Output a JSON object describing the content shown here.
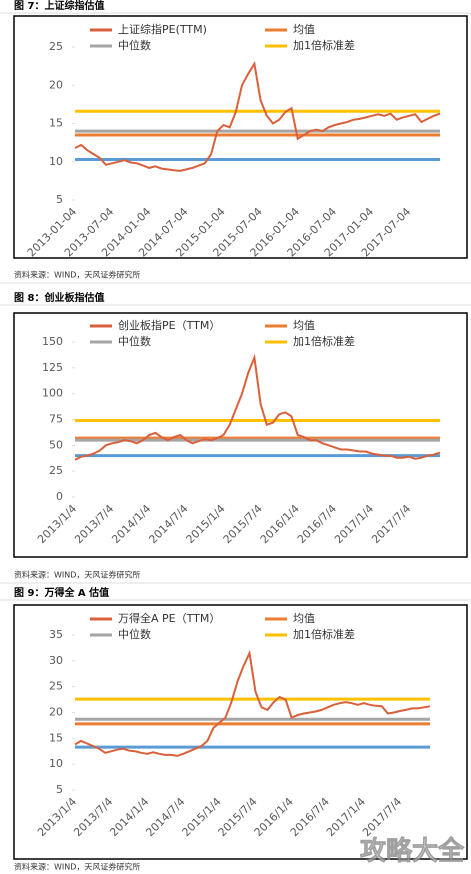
{
  "chart_data": [
    {
      "type": "line",
      "caption": "图 7：上证综指估值",
      "source": "资料来源：WIND，天风证券研究所",
      "categories": [
        "2013-01-04",
        null,
        null,
        null,
        null,
        null,
        "2013-07-04",
        null,
        null,
        null,
        null,
        null,
        "2014-01-04",
        null,
        null,
        null,
        null,
        null,
        "2014-07-04",
        null,
        null,
        null,
        null,
        null,
        "2015-01-04",
        null,
        null,
        null,
        null,
        null,
        "2015-07-04",
        null,
        null,
        null,
        null,
        null,
        "2016-01-04",
        null,
        null,
        null,
        null,
        null,
        "2016-07-04",
        null,
        null,
        null,
        null,
        null,
        "2017-01-04",
        null,
        null,
        null,
        null,
        null,
        "2017-07-04",
        null,
        null,
        null,
        null,
        null
      ],
      "series": [
        {
          "name": "上证综指PE(TTM)",
          "color": "#d9603b",
          "values": [
            11.8,
            12.2,
            11.5,
            11.0,
            10.5,
            9.6,
            9.8,
            10.0,
            10.2,
            9.9,
            9.8,
            9.5,
            9.2,
            9.4,
            9.1,
            9.0,
            8.9,
            8.8,
            9.0,
            9.2,
            9.5,
            9.8,
            11.0,
            14.0,
            14.8,
            14.5,
            16.5,
            20.0,
            21.5,
            22.8,
            18.0,
            16.0,
            15.0,
            15.5,
            16.5,
            17.0,
            13.0,
            13.5,
            14.0,
            14.2,
            14.0,
            14.5,
            14.8,
            15.0,
            15.2,
            15.5,
            15.6,
            15.8,
            16.0,
            16.2,
            16.0,
            16.3,
            15.5,
            15.8,
            16.0,
            16.2,
            15.2,
            15.6,
            16.0,
            16.3
          ]
        }
      ],
      "hlines": [
        {
          "name": "均值",
          "color": "#ed7d31",
          "value": 13.5
        },
        {
          "name": "中位数",
          "color": "#a5a5a5",
          "value": 14.0
        },
        {
          "name": "加1倍标准差",
          "color": "#ffc000",
          "value": 16.6
        },
        {
          "color": "#5b9bd5",
          "value": 10.3
        }
      ],
      "ylim": [
        5,
        25
      ],
      "yticks": [
        5,
        10,
        15,
        20,
        25
      ]
    },
    {
      "type": "line",
      "caption": "图 8：创业板指估值",
      "source": "资料来源：WIND，天风证券研究所",
      "categories": [
        "2013/1/4",
        null,
        null,
        null,
        null,
        null,
        "2013/7/4",
        null,
        null,
        null,
        null,
        null,
        "2014/1/4",
        null,
        null,
        null,
        null,
        null,
        "2014/7/4",
        null,
        null,
        null,
        null,
        null,
        "2015/1/4",
        null,
        null,
        null,
        null,
        null,
        "2015/7/4",
        null,
        null,
        null,
        null,
        null,
        "2016/1/4",
        null,
        null,
        null,
        null,
        null,
        "2016/7/4",
        null,
        null,
        null,
        null,
        null,
        "2017/1/4",
        null,
        null,
        null,
        null,
        null,
        "2017/7/4",
        null,
        null,
        null,
        null,
        null
      ],
      "series": [
        {
          "name": "创业板指PE（TTM）",
          "color": "#d9603b",
          "values": [
            36,
            39,
            40,
            42,
            45,
            50,
            52,
            53,
            55,
            54,
            52,
            55,
            60,
            62,
            58,
            55,
            58,
            60,
            55,
            52,
            54,
            56,
            55,
            57,
            60,
            70,
            85,
            100,
            120,
            135,
            90,
            70,
            72,
            80,
            82,
            78,
            60,
            58,
            55,
            55,
            52,
            50,
            48,
            46,
            46,
            45,
            44,
            44,
            42,
            41,
            40,
            40,
            38,
            38,
            39,
            37,
            38,
            40,
            41,
            43
          ]
        }
      ],
      "hlines": [
        {
          "name": "均值",
          "color": "#ed7d31",
          "value": 57
        },
        {
          "name": "中位数",
          "color": "#a5a5a5",
          "value": 55
        },
        {
          "name": "加1倍标准差",
          "color": "#ffc000",
          "value": 74
        },
        {
          "color": "#5b9bd5",
          "value": 40
        }
      ],
      "ylim": [
        0,
        150
      ],
      "yticks": [
        0,
        25,
        50,
        75,
        100,
        125,
        150
      ]
    },
    {
      "type": "line",
      "caption": "图 9：万得全 A 估值",
      "source": "资料来源：WIND，天风证券研究所",
      "categories": [
        "2013/1/4",
        null,
        null,
        null,
        null,
        null,
        "2013/7/4",
        null,
        null,
        null,
        null,
        null,
        "2014/1/4",
        null,
        null,
        null,
        null,
        null,
        "2014/7/4",
        null,
        null,
        null,
        null,
        null,
        "2015/1/4",
        null,
        null,
        null,
        null,
        null,
        "2015/7/4",
        null,
        null,
        null,
        null,
        null,
        "2016/1/4",
        null,
        null,
        null,
        null,
        null,
        "2016/7/4",
        null,
        null,
        null,
        null,
        null,
        "2017/1/4",
        null,
        null,
        null,
        null,
        null,
        "2017/7/4",
        null,
        null,
        null,
        null,
        null
      ],
      "series": [
        {
          "name": "万得全A PE（TTM）",
          "color": "#d9603b",
          "values": [
            13.8,
            14.5,
            14.0,
            13.5,
            13.0,
            12.2,
            12.5,
            12.8,
            13.0,
            12.6,
            12.5,
            12.2,
            12.0,
            12.3,
            12.0,
            11.8,
            11.8,
            11.6,
            12.0,
            12.5,
            13.0,
            13.5,
            14.5,
            17.0,
            18.0,
            19.0,
            22.0,
            26.0,
            29.0,
            31.5,
            24.0,
            21.0,
            20.5,
            22.0,
            23.0,
            22.5,
            19.0,
            19.5,
            19.8,
            20.0,
            20.2,
            20.5,
            21.0,
            21.5,
            21.8,
            22.0,
            21.8,
            21.5,
            21.8,
            21.5,
            21.3,
            21.2,
            19.8,
            20.0,
            20.3,
            20.5,
            20.8,
            20.8,
            21.0,
            21.2
          ]
        }
      ],
      "hlines": [
        {
          "name": "均值",
          "color": "#ed7d31",
          "value": 17.8
        },
        {
          "name": "中位数",
          "color": "#a5a5a5",
          "value": 18.7
        },
        {
          "name": "加1倍标准差",
          "color": "#ffc000",
          "value": 22.6
        },
        {
          "color": "#5b9bd5",
          "value": 13.3
        }
      ],
      "ylim": [
        5,
        35
      ],
      "yticks": [
        5,
        10,
        15,
        20,
        25,
        30,
        35
      ]
    }
  ],
  "watermark": "攻略大全"
}
